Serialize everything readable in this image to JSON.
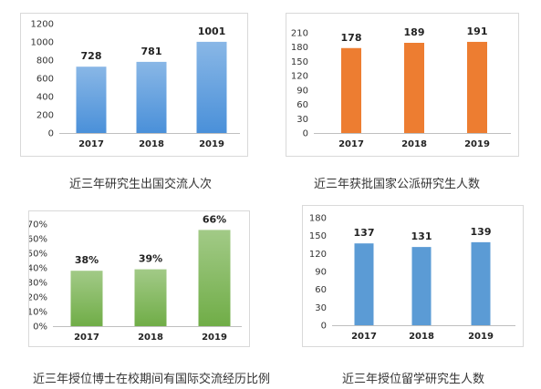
{
  "chart_data": [
    {
      "type": "bar",
      "title": "近三年研究生出国交流人次",
      "categories": [
        "2017",
        "2018",
        "2019"
      ],
      "values": [
        728,
        781,
        1001
      ],
      "data_labels": [
        "728",
        "781",
        "1001"
      ],
      "ylim": [
        0,
        1200
      ],
      "yticks": [
        0,
        200,
        400,
        600,
        800,
        1000,
        1200
      ],
      "ytick_labels": [
        "0",
        "200",
        "400",
        "600",
        "800",
        "1000",
        "1200"
      ],
      "color": "#4a90d9",
      "grid": false,
      "gradient": true
    },
    {
      "type": "bar",
      "title": "近三年获批国家公派研究生人数",
      "categories": [
        "2017",
        "2018",
        "2019"
      ],
      "values": [
        178,
        189,
        191
      ],
      "data_labels": [
        "178",
        "189",
        "191"
      ],
      "ylim": [
        0,
        210
      ],
      "yticks": [
        0,
        30,
        60,
        90,
        120,
        150,
        180,
        210
      ],
      "ytick_labels": [
        "0",
        "30",
        "60",
        "90",
        "120",
        "150",
        "180",
        "210"
      ],
      "color": "#ed7d31",
      "grid": false,
      "gradient": false
    },
    {
      "type": "bar",
      "title": "近三年授位博士在校期间有国际交流经历比例",
      "categories": [
        "2017",
        "2018",
        "2019"
      ],
      "values": [
        38,
        39,
        66
      ],
      "data_labels": [
        "38%",
        "39%",
        "66%"
      ],
      "ylim": [
        0,
        70
      ],
      "yticks": [
        0,
        10,
        20,
        30,
        40,
        50,
        60,
        70
      ],
      "ytick_labels": [
        "0%",
        "10%",
        "20%",
        "30%",
        "40%",
        "50%",
        "60%",
        "70%"
      ],
      "color": "#70ad47",
      "grid": false,
      "gradient": true
    },
    {
      "type": "bar",
      "title": "近三年授位留学研究生人数",
      "categories": [
        "2017",
        "2018",
        "2019"
      ],
      "values": [
        137,
        131,
        139
      ],
      "data_labels": [
        "137",
        "131",
        "139"
      ],
      "ylim": [
        0,
        180
      ],
      "yticks": [
        0,
        30,
        60,
        90,
        120,
        150,
        180
      ],
      "ytick_labels": [
        "0",
        "30",
        "60",
        "90",
        "120",
        "150",
        "180"
      ],
      "color": "#5b9bd5",
      "grid": false,
      "gradient": false
    }
  ]
}
